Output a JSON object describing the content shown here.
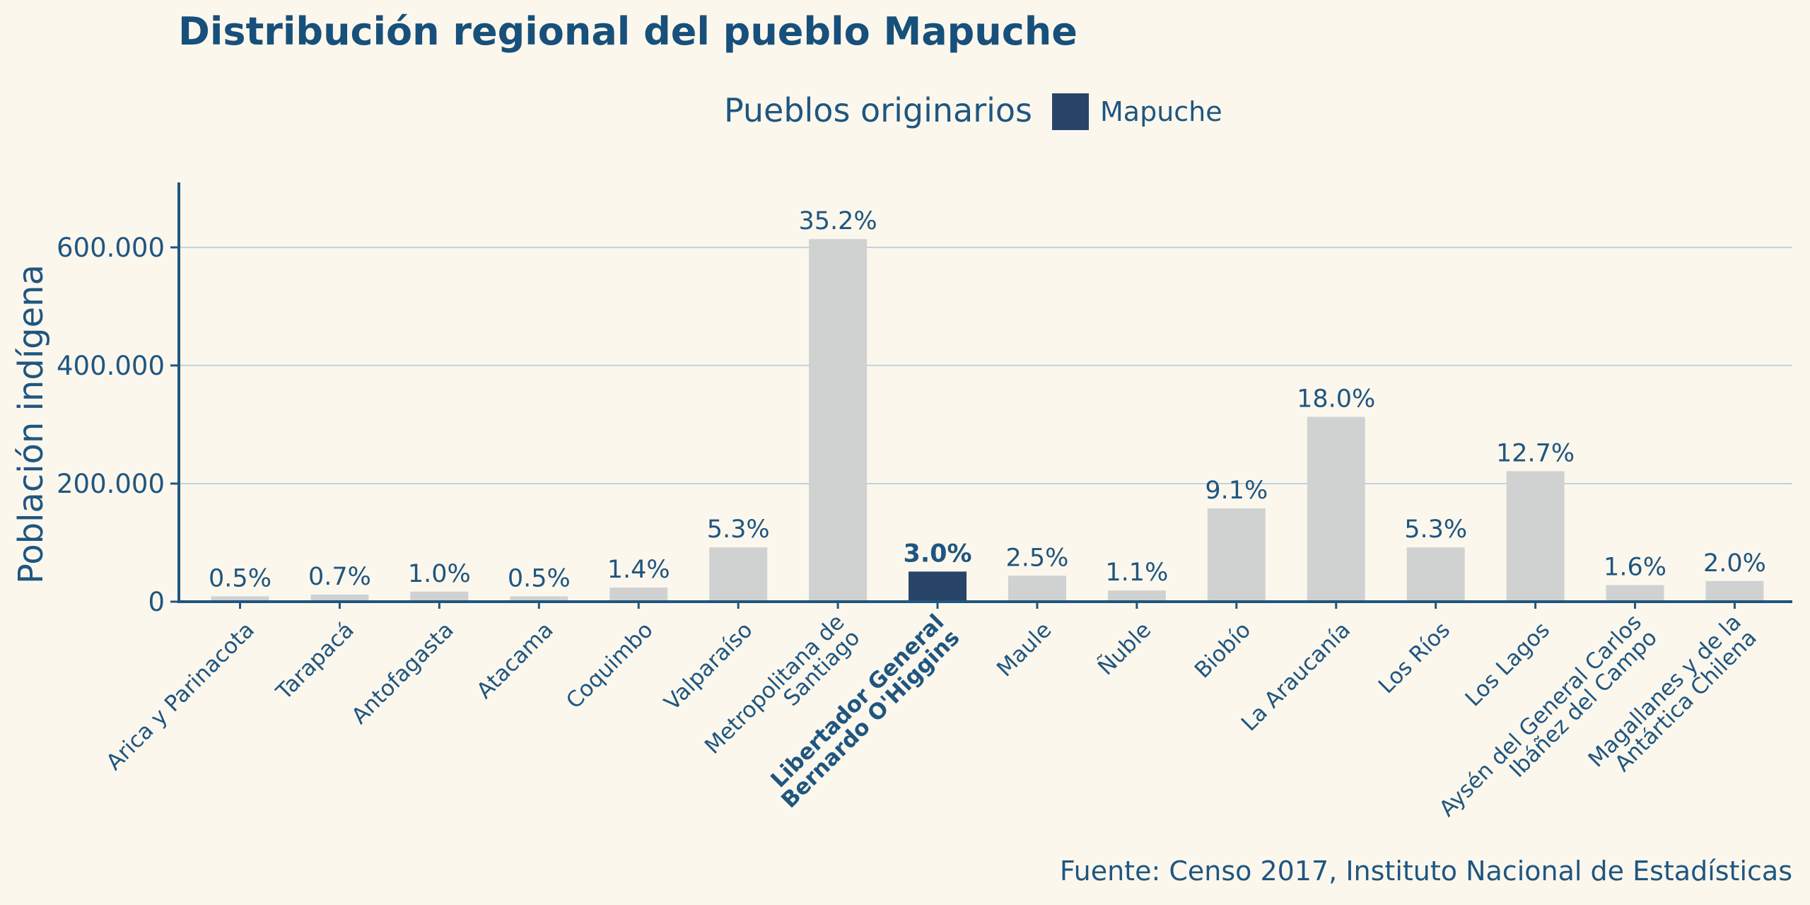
{
  "chart_data": {
    "type": "bar",
    "title": "Distribución regional del pueblo Mapuche",
    "ylabel": "Población indígena",
    "xlabel": "",
    "legend": {
      "title": "Pueblos originarios",
      "label": "Mapuche",
      "color": "#2a4469",
      "position": "top-center"
    },
    "y_ticks": [
      0,
      200000,
      400000,
      600000
    ],
    "y_tick_labels": [
      "0",
      "200.000",
      "400.000",
      "600.000"
    ],
    "ylim": [
      0,
      710000
    ],
    "grid": true,
    "categories": [
      "Arica y Parinacota",
      "Tarapacá",
      "Antofagasta",
      "Atacama",
      "Coquimbo",
      "Valparaíso",
      "Metropolitana de Santiago",
      "Libertador General Bernardo O'Higgins",
      "Maule",
      "Ñuble",
      "Biobío",
      "La Araucanía",
      "Los Ríos",
      "Los Lagos",
      "Aysén del General Carlos Ibáñez del Campo",
      "Magallanes y de la Antártica Chilena"
    ],
    "category_lines": [
      [
        "Arica y Parinacota"
      ],
      [
        "Tarapacá"
      ],
      [
        "Antofagasta"
      ],
      [
        "Atacama"
      ],
      [
        "Coquimbo"
      ],
      [
        "Valparaíso"
      ],
      [
        "Metropolitana de",
        "Santiago"
      ],
      [
        "Libertador General",
        "Bernardo O'Higgins"
      ],
      [
        "Maule"
      ],
      [
        "Ñuble"
      ],
      [
        "Biobío"
      ],
      [
        "La Araucanía"
      ],
      [
        "Los Ríos"
      ],
      [
        "Los Lagos"
      ],
      [
        "Aysén del General Carlos",
        "Ibáñez del Campo"
      ],
      [
        "Magallanes y de la",
        "Antártica Chilena"
      ]
    ],
    "values": [
      9000,
      12000,
      17000,
      9000,
      24000,
      92000,
      614000,
      51000,
      44000,
      19000,
      158000,
      313000,
      92000,
      221000,
      28000,
      35000
    ],
    "labels": [
      "0.5%",
      "0.7%",
      "1.0%",
      "0.5%",
      "1.4%",
      "5.3%",
      "35.2%",
      "3.0%",
      "2.5%",
      "1.1%",
      "9.1%",
      "18.0%",
      "5.3%",
      "12.7%",
      "1.6%",
      "2.0%"
    ],
    "highlight_index": 7,
    "colors": {
      "default": "#d0d2d2",
      "highlight": "#2a4469",
      "axis": "#1f5680",
      "grid": "#c3d2dc"
    },
    "source": "Fuente: Censo 2017, Instituto Nacional de Estadísticas"
  }
}
